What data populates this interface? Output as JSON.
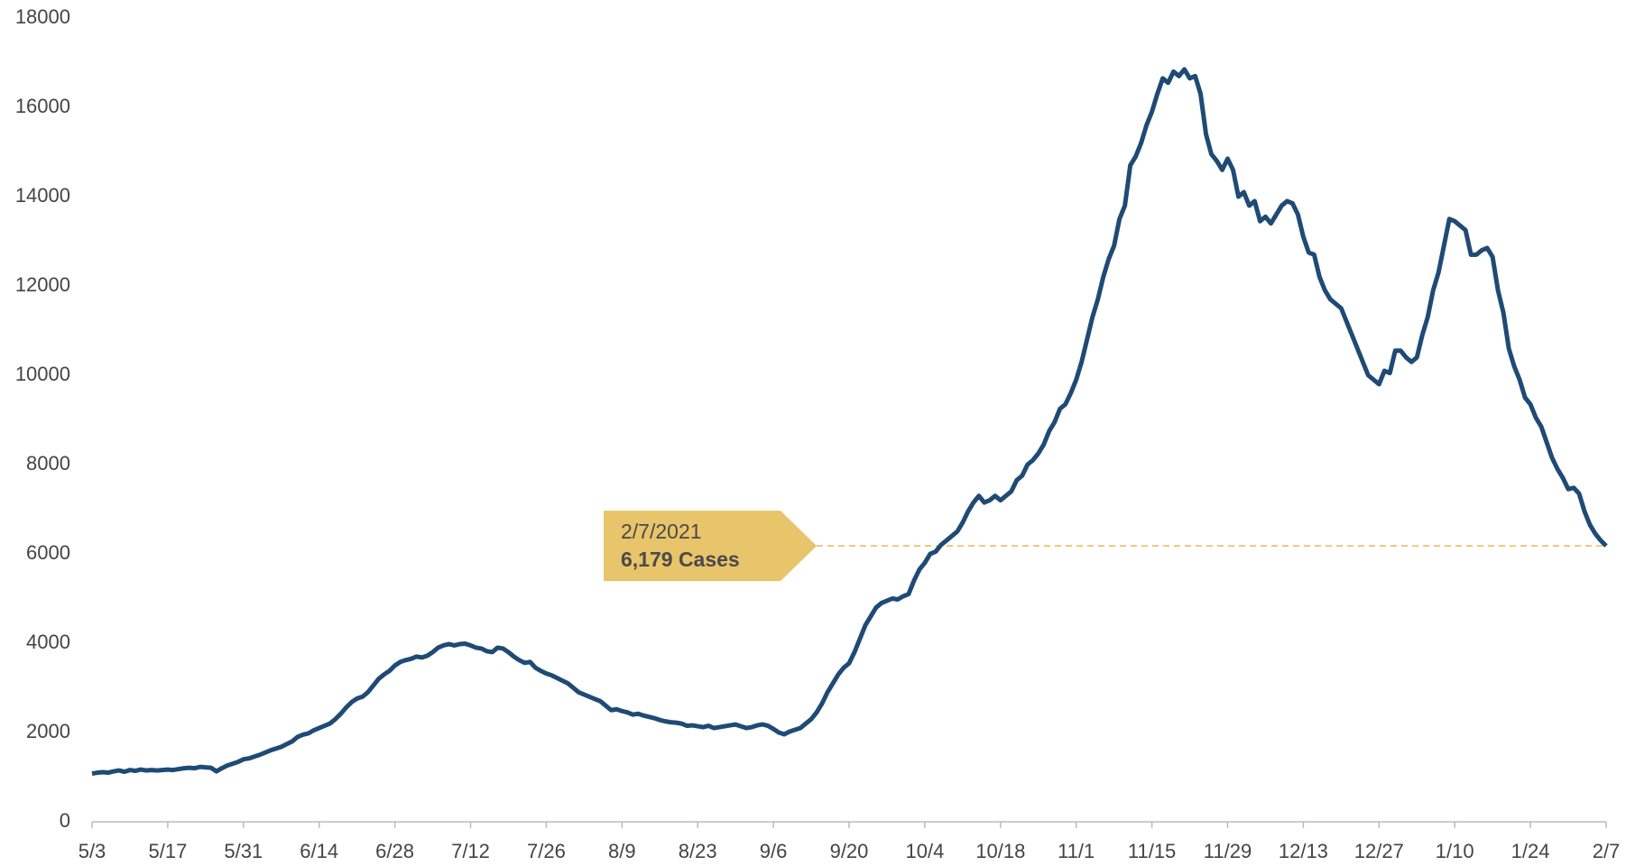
{
  "chart_data": {
    "type": "line",
    "categories": [
      "5/3",
      null,
      null,
      null,
      null,
      null,
      null,
      null,
      null,
      null,
      null,
      null,
      null,
      null,
      "5/17",
      null,
      null,
      null,
      null,
      null,
      null,
      null,
      null,
      null,
      null,
      null,
      null,
      null,
      "5/31",
      null,
      null,
      null,
      null,
      null,
      null,
      null,
      null,
      null,
      null,
      null,
      null,
      null,
      "6/14",
      null,
      null,
      null,
      null,
      null,
      null,
      null,
      null,
      null,
      null,
      null,
      null,
      null,
      "6/28",
      null,
      null,
      null,
      null,
      null,
      null,
      null,
      null,
      null,
      null,
      null,
      null,
      null,
      "7/12",
      null,
      null,
      null,
      null,
      null,
      null,
      null,
      null,
      null,
      null,
      null,
      null,
      null,
      "7/26",
      null,
      null,
      null,
      null,
      null,
      null,
      null,
      null,
      null,
      null,
      null,
      null,
      null,
      "8/9",
      null,
      null,
      null,
      null,
      null,
      null,
      null,
      null,
      null,
      null,
      null,
      null,
      null,
      "8/23",
      null,
      null,
      null,
      null,
      null,
      null,
      null,
      null,
      null,
      null,
      null,
      null,
      null,
      "9/6",
      null,
      null,
      null,
      null,
      null,
      null,
      null,
      null,
      null,
      null,
      null,
      null,
      null,
      "9/20",
      null,
      null,
      null,
      null,
      null,
      null,
      null,
      null,
      null,
      null,
      null,
      null,
      null,
      "10/4",
      null,
      null,
      null,
      null,
      null,
      null,
      null,
      null,
      null,
      null,
      null,
      null,
      null,
      "10/18",
      null,
      null,
      null,
      null,
      null,
      null,
      null,
      null,
      null,
      null,
      null,
      null,
      null,
      "11/1",
      null,
      null,
      null,
      null,
      null,
      null,
      null,
      null,
      null,
      null,
      null,
      null,
      null,
      "11/15",
      null,
      null,
      null,
      null,
      null,
      null,
      null,
      null,
      null,
      null,
      null,
      null,
      null,
      "11/29",
      null,
      null,
      null,
      null,
      null,
      null,
      null,
      null,
      null,
      null,
      null,
      null,
      null,
      "12/13",
      null,
      null,
      null,
      null,
      null,
      null,
      null,
      null,
      null,
      null,
      null,
      null,
      null,
      "12/27",
      null,
      null,
      null,
      null,
      null,
      null,
      null,
      null,
      null,
      null,
      null,
      null,
      null,
      "1/10",
      null,
      null,
      null,
      null,
      null,
      null,
      null,
      null,
      null,
      null,
      null,
      null,
      null,
      "1/24",
      null,
      null,
      null,
      null,
      null,
      null,
      null,
      null,
      null,
      null,
      null,
      null,
      null,
      "2/7"
    ],
    "series": [
      {
        "color": "#1f4a75",
        "values": [
          1080,
          1100,
          1110,
          1100,
          1130,
          1150,
          1120,
          1160,
          1140,
          1170,
          1150,
          1160,
          1150,
          1160,
          1170,
          1160,
          1180,
          1200,
          1210,
          1200,
          1230,
          1220,
          1210,
          1130,
          1200,
          1260,
          1300,
          1340,
          1400,
          1420,
          1460,
          1500,
          1550,
          1600,
          1640,
          1680,
          1740,
          1800,
          1900,
          1950,
          1980,
          2050,
          2100,
          2150,
          2200,
          2300,
          2420,
          2560,
          2680,
          2760,
          2800,
          2900,
          3050,
          3200,
          3300,
          3380,
          3500,
          3580,
          3620,
          3650,
          3700,
          3680,
          3720,
          3800,
          3900,
          3950,
          3980,
          3950,
          3980,
          3990,
          3950,
          3900,
          3880,
          3820,
          3800,
          3900,
          3880,
          3800,
          3700,
          3620,
          3560,
          3580,
          3450,
          3380,
          3320,
          3280,
          3220,
          3160,
          3100,
          3000,
          2900,
          2850,
          2800,
          2750,
          2700,
          2600,
          2500,
          2520,
          2480,
          2450,
          2400,
          2420,
          2380,
          2350,
          2320,
          2280,
          2250,
          2230,
          2220,
          2200,
          2150,
          2160,
          2140,
          2120,
          2150,
          2100,
          2120,
          2140,
          2160,
          2180,
          2140,
          2100,
          2120,
          2160,
          2180,
          2150,
          2080,
          2000,
          1960,
          2020,
          2060,
          2100,
          2200,
          2300,
          2450,
          2650,
          2900,
          3100,
          3300,
          3450,
          3550,
          3800,
          4100,
          4400,
          4600,
          4800,
          4900,
          4950,
          5000,
          4980,
          5050,
          5100,
          5400,
          5650,
          5800,
          6000,
          6050,
          6200,
          6300,
          6400,
          6500,
          6700,
          6950,
          7150,
          7300,
          7150,
          7200,
          7300,
          7200,
          7300,
          7400,
          7650,
          7750,
          8000,
          8100,
          8250,
          8450,
          8750,
          8950,
          9250,
          9350,
          9600,
          9900,
          10300,
          10800,
          11300,
          11700,
          12200,
          12600,
          12900,
          13500,
          13800,
          14700,
          14900,
          15200,
          15600,
          15900,
          16300,
          16650,
          16550,
          16800,
          16700,
          16850,
          16650,
          16700,
          16300,
          15400,
          14950,
          14800,
          14600,
          14850,
          14600,
          14000,
          14100,
          13800,
          13900,
          13450,
          13550,
          13400,
          13600,
          13800,
          13900,
          13850,
          13600,
          13100,
          12750,
          12700,
          12200,
          11900,
          11700,
          11600,
          11500,
          11200,
          10900,
          10600,
          10300,
          10000,
          9900,
          9800,
          10100,
          10050,
          10550,
          10550,
          10400,
          10300,
          10400,
          10900,
          11300,
          11900,
          12300,
          12900,
          13500,
          13450,
          13350,
          13250,
          12700,
          12700,
          12800,
          12850,
          12650,
          11900,
          11400,
          10600,
          10200,
          9900,
          9500,
          9350,
          9050,
          8850,
          8500,
          8150,
          7900,
          7700,
          7450,
          7480,
          7350,
          6950,
          6650,
          6450,
          6300,
          6179
        ]
      }
    ],
    "ylim": [
      0,
      18000
    ],
    "yticks": [
      0,
      2000,
      4000,
      6000,
      8000,
      10000,
      12000,
      14000,
      16000,
      18000
    ],
    "grid": false,
    "annotation": {
      "date": "2/7/2021",
      "label": "6,179 Cases",
      "color": "#e8c46a"
    }
  }
}
